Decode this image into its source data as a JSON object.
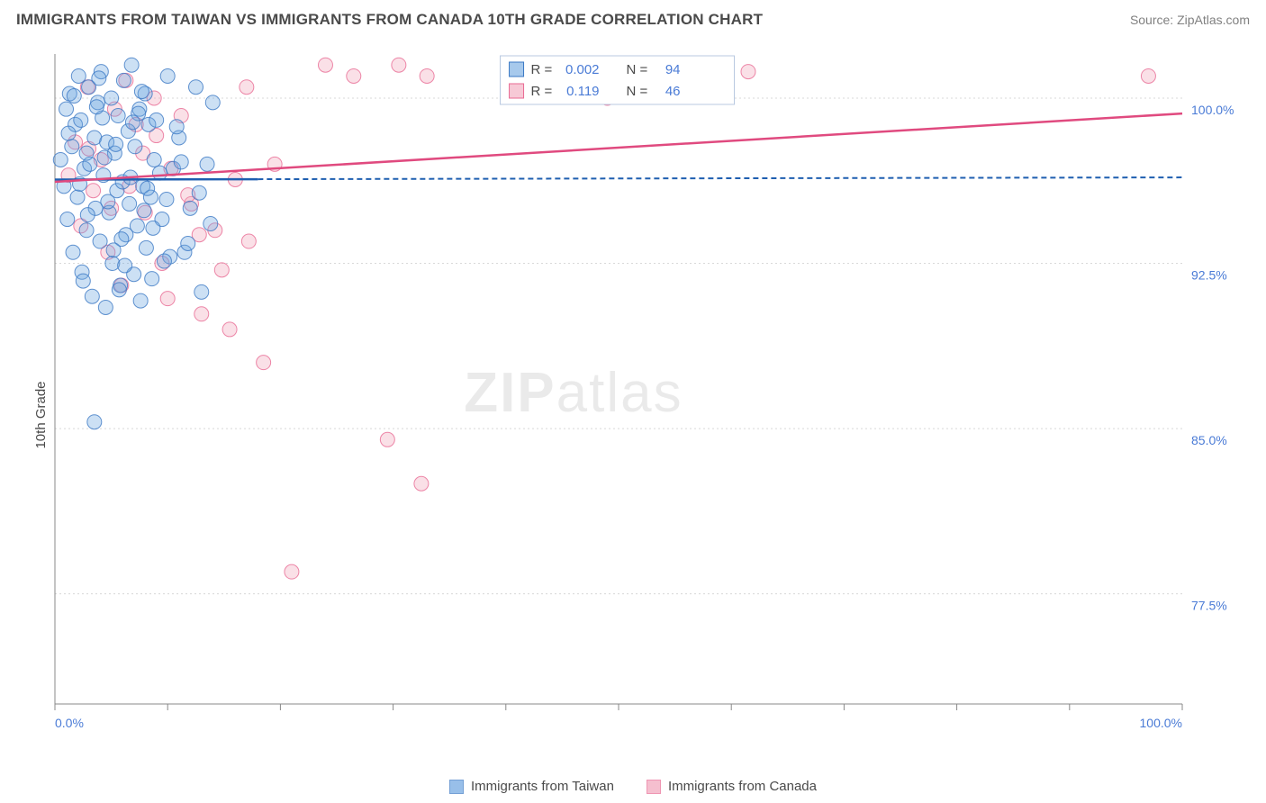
{
  "title": "IMMIGRANTS FROM TAIWAN VS IMMIGRANTS FROM CANADA 10TH GRADE CORRELATION CHART",
  "source_label": "Source: ZipAtlas.com",
  "ylabel": "10th Grade",
  "watermark_a": "ZIP",
  "watermark_b": "atlas",
  "chart": {
    "type": "scatter",
    "background_color": "#ffffff",
    "grid_color": "#d8d8d8",
    "axis_color": "#888888",
    "text_color": "#4a4a4a",
    "value_color": "#4a7bd6",
    "xlim": [
      0,
      100
    ],
    "ylim": [
      72.5,
      102
    ],
    "x_ticks": [
      0,
      10,
      20,
      30,
      40,
      50,
      60,
      70,
      80,
      90,
      100
    ],
    "x_tick_labels": {
      "0": "0.0%",
      "100": "100.0%"
    },
    "y_ticks": [
      77.5,
      85.0,
      92.5,
      100.0
    ],
    "y_tick_labels": [
      "77.5%",
      "85.0%",
      "92.5%",
      "100.0%"
    ],
    "marker_radius": 8,
    "marker_opacity": 0.35,
    "series": [
      {
        "name": "Immigrants from Taiwan",
        "fill_color": "#6da5e0",
        "stroke_color": "#3b78c4",
        "line_color": "#1f5fb0",
        "line_dash": "6,4",
        "line_solid_end_x": 18,
        "r": "0.002",
        "n": "94",
        "reg_y_at_0": 96.3,
        "reg_y_at_100": 96.4,
        "points": [
          [
            0.5,
            97.2
          ],
          [
            0.8,
            96.0
          ],
          [
            1.0,
            99.5
          ],
          [
            1.1,
            94.5
          ],
          [
            1.3,
            100.2
          ],
          [
            1.5,
            97.8
          ],
          [
            1.6,
            93.0
          ],
          [
            1.8,
            98.8
          ],
          [
            2.0,
            95.5
          ],
          [
            2.1,
            101.0
          ],
          [
            2.3,
            99.0
          ],
          [
            2.4,
            92.1
          ],
          [
            2.6,
            96.8
          ],
          [
            2.8,
            94.0
          ],
          [
            3.0,
            100.5
          ],
          [
            3.1,
            97.0
          ],
          [
            3.3,
            91.0
          ],
          [
            3.5,
            98.2
          ],
          [
            3.6,
            95.0
          ],
          [
            3.8,
            99.8
          ],
          [
            4.0,
            93.5
          ],
          [
            4.1,
            101.2
          ],
          [
            4.3,
            96.5
          ],
          [
            4.5,
            90.5
          ],
          [
            4.6,
            98.0
          ],
          [
            4.8,
            94.8
          ],
          [
            5.0,
            100.0
          ],
          [
            5.1,
            92.5
          ],
          [
            5.3,
            97.5
          ],
          [
            5.5,
            95.8
          ],
          [
            5.6,
            99.2
          ],
          [
            5.8,
            91.5
          ],
          [
            6.0,
            96.2
          ],
          [
            6.1,
            100.8
          ],
          [
            6.3,
            93.8
          ],
          [
            6.5,
            98.5
          ],
          [
            6.6,
            95.2
          ],
          [
            6.8,
            101.5
          ],
          [
            7.0,
            92.0
          ],
          [
            7.1,
            97.8
          ],
          [
            7.3,
            94.2
          ],
          [
            7.5,
            99.5
          ],
          [
            7.6,
            90.8
          ],
          [
            7.8,
            96.0
          ],
          [
            8.0,
            100.2
          ],
          [
            8.1,
            93.2
          ],
          [
            8.3,
            98.8
          ],
          [
            8.5,
            95.5
          ],
          [
            8.6,
            91.8
          ],
          [
            8.8,
            97.2
          ],
          [
            9.0,
            99.0
          ],
          [
            9.5,
            94.5
          ],
          [
            10.0,
            101.0
          ],
          [
            10.2,
            92.8
          ],
          [
            10.5,
            96.8
          ],
          [
            11.0,
            98.2
          ],
          [
            11.5,
            93.0
          ],
          [
            12.0,
            95.0
          ],
          [
            12.5,
            100.5
          ],
          [
            13.0,
            91.2
          ],
          [
            13.5,
            97.0
          ],
          [
            14.0,
            99.8
          ],
          [
            3.5,
            85.3
          ],
          [
            2.8,
            97.5
          ],
          [
            4.2,
            99.1
          ],
          [
            5.9,
            93.6
          ],
          [
            6.7,
            96.4
          ],
          [
            7.9,
            94.9
          ],
          [
            1.2,
            98.4
          ],
          [
            2.5,
            91.7
          ],
          [
            3.9,
            100.9
          ],
          [
            4.7,
            95.3
          ],
          [
            5.4,
            97.9
          ],
          [
            6.2,
            92.4
          ],
          [
            7.4,
            99.3
          ],
          [
            8.7,
            94.1
          ],
          [
            9.3,
            96.6
          ],
          [
            10.8,
            98.7
          ],
          [
            11.8,
            93.4
          ],
          [
            12.8,
            95.7
          ],
          [
            1.7,
            100.1
          ],
          [
            2.9,
            94.7
          ],
          [
            4.4,
            97.3
          ],
          [
            5.7,
            91.3
          ],
          [
            6.9,
            98.9
          ],
          [
            8.2,
            95.9
          ],
          [
            9.7,
            92.6
          ],
          [
            11.2,
            97.1
          ],
          [
            13.8,
            94.3
          ],
          [
            2.2,
            96.1
          ],
          [
            3.7,
            99.6
          ],
          [
            5.2,
            93.1
          ],
          [
            7.7,
            100.3
          ],
          [
            9.9,
            95.4
          ]
        ]
      },
      {
        "name": "Immigrants from Canada",
        "fill_color": "#f2a5bb",
        "stroke_color": "#e96a93",
        "line_color": "#e04a7f",
        "line_dash": "",
        "line_solid_end_x": 100,
        "r": "0.119",
        "n": "46",
        "reg_y_at_0": 96.2,
        "reg_y_at_100": 99.3,
        "points": [
          [
            1.2,
            96.5
          ],
          [
            1.8,
            98.0
          ],
          [
            2.3,
            94.2
          ],
          [
            2.9,
            100.5
          ],
          [
            3.4,
            95.8
          ],
          [
            4.1,
            97.2
          ],
          [
            4.7,
            93.0
          ],
          [
            5.3,
            99.5
          ],
          [
            5.9,
            91.5
          ],
          [
            6.6,
            96.0
          ],
          [
            7.2,
            98.8
          ],
          [
            8.0,
            94.8
          ],
          [
            8.8,
            100.0
          ],
          [
            9.5,
            92.5
          ],
          [
            10.3,
            96.8
          ],
          [
            11.2,
            99.2
          ],
          [
            12.1,
            95.2
          ],
          [
            13.0,
            90.2
          ],
          [
            14.2,
            94.0
          ],
          [
            15.5,
            89.5
          ],
          [
            17.0,
            100.5
          ],
          [
            17.2,
            93.5
          ],
          [
            18.5,
            88.0
          ],
          [
            21.0,
            78.5
          ],
          [
            24.0,
            101.5
          ],
          [
            26.5,
            101.0
          ],
          [
            29.5,
            84.5
          ],
          [
            30.5,
            101.5
          ],
          [
            32.5,
            82.5
          ],
          [
            33.0,
            101.0
          ],
          [
            43.0,
            100.3
          ],
          [
            45.5,
            100.5
          ],
          [
            49.0,
            100.0
          ],
          [
            61.5,
            101.2
          ],
          [
            97.0,
            101.0
          ],
          [
            3.0,
            97.7
          ],
          [
            5.0,
            95.0
          ],
          [
            7.8,
            97.5
          ],
          [
            10.0,
            90.9
          ],
          [
            12.8,
            93.8
          ],
          [
            16.0,
            96.3
          ],
          [
            6.3,
            100.8
          ],
          [
            9.0,
            98.3
          ],
          [
            11.8,
            95.6
          ],
          [
            14.8,
            92.2
          ],
          [
            19.5,
            97.0
          ]
        ]
      }
    ]
  },
  "legend": {
    "series1_label": "Immigrants from Taiwan",
    "series2_label": "Immigrants from Canada"
  },
  "stats_box": {
    "border_color": "#b8c8e0",
    "bg_color": "#ffffff"
  }
}
